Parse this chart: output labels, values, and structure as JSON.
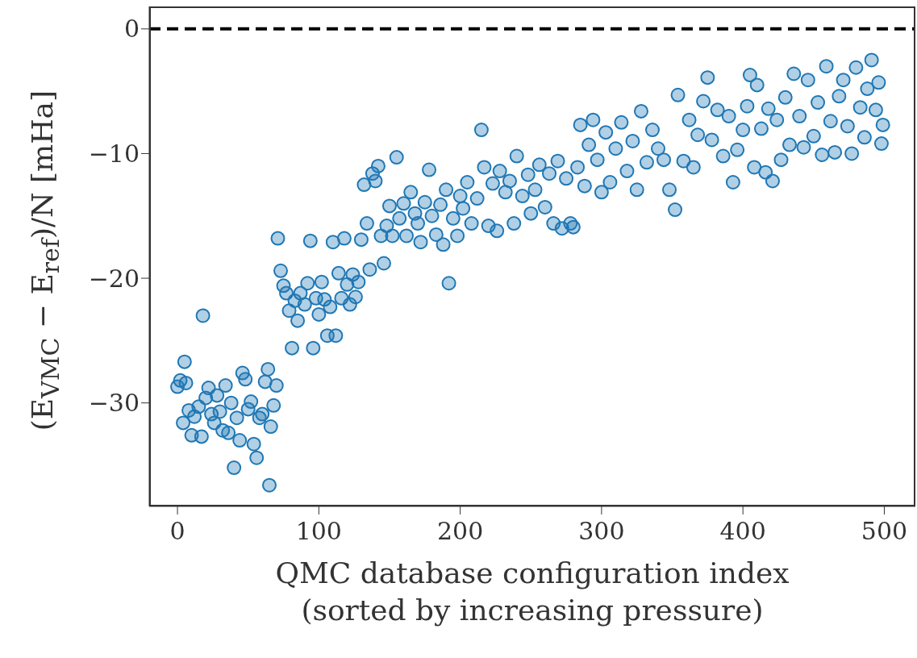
{
  "chart_data": {
    "type": "scatter",
    "xlabel": "QMC database configuration index\n(sorted by increasing pressure)",
    "ylabel": "(E$_{VMC}$ − E$_{ref}$)/N [mHa]",
    "xlim": [
      -20,
      522
    ],
    "ylim": [
      -38.3,
      1.8
    ],
    "xticks": [
      0,
      100,
      200,
      300,
      400,
      500
    ],
    "yticks": [
      -30,
      -20,
      -10,
      0
    ],
    "grid": false,
    "marker": "circle",
    "ref_lines": [
      {
        "axis": "y",
        "value": 0,
        "color": "#000000",
        "line_style": "dashed"
      }
    ],
    "series": [
      {
        "color": "#1f77b4",
        "x": [
          0,
          2,
          4,
          5,
          6,
          8,
          10,
          12,
          15,
          17,
          18,
          20,
          22,
          24,
          26,
          28,
          30,
          32,
          34,
          36,
          38,
          40,
          42,
          44,
          46,
          48,
          50,
          52,
          54,
          56,
          58,
          60,
          62,
          64,
          65,
          66,
          68,
          70,
          71,
          73,
          75,
          77,
          79,
          81,
          83,
          85,
          87,
          90,
          92,
          94,
          96,
          98,
          100,
          102,
          104,
          106,
          108,
          110,
          112,
          114,
          116,
          118,
          120,
          122,
          124,
          126,
          128,
          130,
          132,
          134,
          136,
          138,
          140,
          142,
          144,
          146,
          148,
          150,
          152,
          155,
          157,
          160,
          162,
          165,
          168,
          170,
          172,
          175,
          178,
          180,
          183,
          186,
          188,
          190,
          192,
          195,
          198,
          200,
          202,
          205,
          208,
          212,
          215,
          217,
          220,
          223,
          226,
          228,
          232,
          235,
          238,
          240,
          244,
          248,
          250,
          253,
          256,
          260,
          263,
          266,
          269,
          272,
          275,
          278,
          280,
          283,
          285,
          288,
          291,
          294,
          297,
          300,
          303,
          306,
          310,
          314,
          318,
          322,
          325,
          328,
          332,
          336,
          340,
          344,
          348,
          352,
          354,
          358,
          362,
          365,
          368,
          372,
          375,
          378,
          382,
          386,
          390,
          393,
          396,
          400,
          403,
          405,
          408,
          410,
          413,
          416,
          418,
          421,
          424,
          427,
          430,
          433,
          436,
          440,
          443,
          446,
          450,
          453,
          456,
          459,
          462,
          465,
          468,
          471,
          474,
          477,
          480,
          483,
          486,
          488,
          491,
          494,
          496,
          498,
          499
        ],
        "values": [
          -28.7,
          -28.2,
          -31.6,
          -26.7,
          -28.4,
          -30.6,
          -32.6,
          -31.1,
          -30.3,
          -32.7,
          -23,
          -29.6,
          -28.8,
          -30.9,
          -31.6,
          -29.4,
          -30.7,
          -32.2,
          -28.6,
          -32.4,
          -30,
          -35.2,
          -31.2,
          -33,
          -27.6,
          -28.1,
          -30.5,
          -29.9,
          -33.3,
          -34.4,
          -31.2,
          -30.9,
          -28.3,
          -27.3,
          -36.6,
          -31.9,
          -30.2,
          -28.6,
          -16.8,
          -19.4,
          -20.6,
          -21.2,
          -22.6,
          -25.6,
          -21.8,
          -23.4,
          -21.2,
          -22.1,
          -20.4,
          -17,
          -25.6,
          -21.6,
          -22.9,
          -20.3,
          -21.7,
          -24.6,
          -22.3,
          -17.1,
          -24.6,
          -19.6,
          -21.6,
          -16.8,
          -20.5,
          -22.1,
          -19.7,
          -21.5,
          -20.3,
          -16.9,
          -12.5,
          -15.6,
          -19.3,
          -11.6,
          -12.2,
          -11,
          -16.6,
          -18.8,
          -15.8,
          -14.2,
          -16.6,
          -10.3,
          -15.2,
          -14,
          -16.6,
          -13.1,
          -14.8,
          -15.6,
          -17.1,
          -13.9,
          -11.3,
          -15,
          -16.5,
          -14.1,
          -17.3,
          -12.9,
          -20.4,
          -15.2,
          -16.6,
          -13.4,
          -14.4,
          -12.3,
          -15.6,
          -13.6,
          -8.1,
          -11.1,
          -15.8,
          -12.4,
          -16.2,
          -11.4,
          -13.1,
          -12.2,
          -15.6,
          -10.2,
          -13.4,
          -11.7,
          -14.8,
          -12.9,
          -10.9,
          -14.3,
          -11.6,
          -15.6,
          -10.6,
          -16,
          -12,
          -15.6,
          -15.9,
          -11.1,
          -7.7,
          -12.6,
          -9.3,
          -7.3,
          -10.5,
          -13.1,
          -8.3,
          -12.3,
          -9.6,
          -7.5,
          -11.4,
          -9,
          -12.9,
          -6.6,
          -10.7,
          -8.1,
          -9.6,
          -10.5,
          -12.9,
          -14.5,
          -5.3,
          -10.6,
          -7.3,
          -11.1,
          -8.5,
          -5.8,
          -3.9,
          -8.9,
          -6.5,
          -10.2,
          -7,
          -12.3,
          -9.7,
          -8.1,
          -6.2,
          -3.7,
          -11.1,
          -4.5,
          -8,
          -11.5,
          -6.4,
          -12.2,
          -7.3,
          -10.5,
          -5.5,
          -9.3,
          -3.6,
          -7,
          -9.5,
          -4.1,
          -8.6,
          -5.9,
          -10.1,
          -3,
          -7.4,
          -9.9,
          -5.4,
          -4.1,
          -7.8,
          -10,
          -3.1,
          -6.3,
          -8.7,
          -4.8,
          -2.5,
          -6.5,
          -4.3,
          -9.2,
          -7.7
        ]
      }
    ]
  }
}
